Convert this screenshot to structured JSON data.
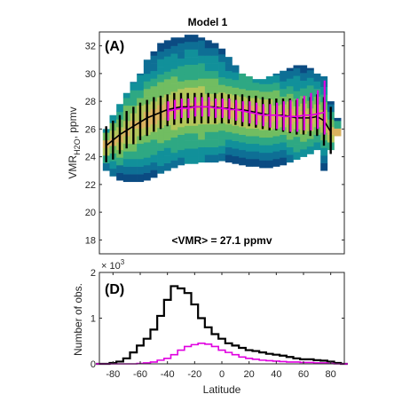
{
  "chart_data": [
    {
      "panel": "(A)",
      "type": "heatmap",
      "title": "Model 1",
      "xlim": [
        -90,
        90
      ],
      "ylim": [
        17,
        33
      ],
      "yticks": [
        18,
        20,
        22,
        24,
        26,
        28,
        30,
        32
      ],
      "ylabel_main": "VMR",
      "ylabel_sub": "H2O",
      "ylabel_rest": ", ppmv",
      "annotation": "<VMR> = 27.1 ppmv",
      "x": [
        -85,
        -80,
        -75,
        -70,
        -65,
        -60,
        -55,
        -50,
        -45,
        -40,
        -35,
        -30,
        -25,
        -20,
        -15,
        -10,
        -5,
        0,
        5,
        10,
        15,
        20,
        25,
        30,
        35,
        40,
        45,
        50,
        55,
        60,
        65,
        70,
        75,
        80,
        85
      ],
      "density_range": {
        "low": [
          23.0,
          22.6,
          22.3,
          22.2,
          22.2,
          22.2,
          22.3,
          22.5,
          22.8,
          23.0,
          23.2,
          23.4,
          23.5,
          23.5,
          23.6,
          23.6,
          23.6,
          23.7,
          23.6,
          23.5,
          23.4,
          23.3,
          23.3,
          23.2,
          23.2,
          23.3,
          23.4,
          23.6,
          23.8,
          24.0,
          24.2,
          24.5,
          23.0,
          24.5,
          25.5
        ],
        "high": [
          26.0,
          27.0,
          27.8,
          28.6,
          29.4,
          30.0,
          31.0,
          31.6,
          32.2,
          32.4,
          32.6,
          32.6,
          32.8,
          32.8,
          32.6,
          32.4,
          32.2,
          31.8,
          31.2,
          30.6,
          30.0,
          29.8,
          29.6,
          29.6,
          29.8,
          30.0,
          30.2,
          30.4,
          30.6,
          30.6,
          30.4,
          30.0,
          29.8,
          28.0,
          26.8
        ]
      },
      "series": [
        {
          "name": "",
          "color": "#000000",
          "x": [
            -85,
            -80,
            -75,
            -70,
            -65,
            -60,
            -55,
            -50,
            -45,
            -40,
            -35,
            -30,
            -25,
            -20,
            -15,
            -10,
            -5,
            0,
            5,
            10,
            15,
            20,
            25,
            30,
            35,
            40,
            45,
            50,
            55,
            60,
            65,
            70,
            75,
            80
          ],
          "median": [
            24.8,
            25.2,
            25.6,
            25.9,
            26.2,
            26.5,
            26.8,
            27.0,
            27.2,
            27.4,
            27.5,
            27.6,
            27.6,
            27.6,
            27.6,
            27.6,
            27.6,
            27.5,
            27.5,
            27.4,
            27.4,
            27.3,
            27.2,
            27.1,
            27.0,
            27.0,
            27.0,
            26.9,
            26.8,
            26.8,
            26.8,
            26.9,
            26.6,
            25.8
          ],
          "low": [
            23.6,
            23.8,
            24.2,
            24.6,
            24.9,
            25.2,
            25.5,
            25.8,
            26.0,
            26.2,
            26.3,
            26.4,
            26.4,
            26.4,
            26.4,
            26.4,
            26.4,
            26.4,
            26.4,
            26.3,
            26.2,
            26.2,
            26.1,
            26.0,
            25.9,
            25.9,
            25.8,
            25.7,
            25.6,
            25.6,
            25.5,
            25.5,
            24.8,
            24.2
          ],
          "high": [
            26.2,
            26.6,
            27.0,
            27.3,
            27.6,
            27.9,
            28.1,
            28.3,
            28.4,
            28.5,
            28.6,
            28.6,
            28.6,
            28.6,
            28.6,
            28.6,
            28.6,
            28.6,
            28.5,
            28.5,
            28.5,
            28.4,
            28.4,
            28.3,
            28.2,
            28.2,
            28.2,
            28.2,
            28.1,
            28.2,
            28.3,
            28.5,
            28.3,
            27.6
          ]
        },
        {
          "name": "",
          "color": "#e000e0",
          "x": [
            -40,
            -35,
            -30,
            -25,
            -20,
            -15,
            -10,
            -5,
            0,
            5,
            10,
            15,
            20,
            25,
            30,
            35,
            40,
            45,
            50,
            55,
            60,
            65,
            70,
            75
          ],
          "median": [
            27.3,
            27.4,
            27.5,
            27.5,
            27.6,
            27.6,
            27.6,
            27.5,
            27.5,
            27.4,
            27.4,
            27.3,
            27.2,
            27.1,
            27.0,
            27.0,
            27.0,
            26.9,
            26.9,
            26.9,
            27.0,
            27.0,
            27.1,
            27.2
          ],
          "low": [
            26.6,
            26.7,
            26.8,
            26.8,
            26.9,
            26.9,
            26.9,
            26.8,
            26.8,
            26.7,
            26.6,
            26.5,
            26.4,
            26.3,
            26.2,
            26.1,
            26.0,
            25.9,
            25.8,
            25.8,
            25.9,
            25.9,
            26.0,
            25.6
          ],
          "high": [
            28.0,
            28.1,
            28.2,
            28.2,
            28.3,
            28.3,
            28.3,
            28.2,
            28.2,
            28.2,
            28.1,
            28.0,
            28.0,
            27.9,
            27.8,
            27.8,
            27.9,
            28.0,
            28.1,
            28.2,
            28.4,
            28.6,
            28.8,
            29.5
          ]
        }
      ]
    },
    {
      "panel": "(D)",
      "type": "line",
      "xlim": [
        -90,
        90
      ],
      "ylim": [
        0,
        2
      ],
      "xticks": [
        -80,
        -60,
        -40,
        -20,
        0,
        20,
        40,
        60,
        80
      ],
      "yticks": [
        0,
        1,
        2
      ],
      "xlabel": "Latitude",
      "ylabel": "Number of obs.",
      "exponent_label": "× 10",
      "exponent_power": "3",
      "series": [
        {
          "name": "",
          "color": "#000000",
          "x": [
            -90,
            -85,
            -80,
            -75,
            -70,
            -65,
            -60,
            -55,
            -50,
            -45,
            -40,
            -35,
            -30,
            -25,
            -20,
            -15,
            -10,
            -5,
            0,
            5,
            10,
            15,
            20,
            25,
            30,
            35,
            40,
            45,
            50,
            55,
            60,
            65,
            70,
            75,
            80,
            85,
            90
          ],
          "values": [
            0.0,
            0.0,
            0.02,
            0.05,
            0.12,
            0.25,
            0.4,
            0.55,
            0.75,
            1.05,
            1.4,
            1.7,
            1.65,
            1.55,
            1.3,
            1.0,
            0.8,
            0.65,
            0.55,
            0.45,
            0.4,
            0.35,
            0.3,
            0.28,
            0.25,
            0.22,
            0.2,
            0.18,
            0.15,
            0.12,
            0.1,
            0.1,
            0.08,
            0.07,
            0.05,
            0.02,
            0.0
          ]
        },
        {
          "name": "",
          "color": "#e000e0",
          "x": [
            -90,
            -85,
            -80,
            -75,
            -70,
            -65,
            -60,
            -55,
            -50,
            -45,
            -40,
            -35,
            -30,
            -25,
            -20,
            -15,
            -10,
            -5,
            0,
            5,
            10,
            15,
            20,
            25,
            30,
            35,
            40,
            45,
            50,
            55,
            60,
            65,
            70,
            75,
            80,
            85,
            90
          ],
          "values": [
            0.0,
            0.0,
            0.0,
            0.0,
            0.0,
            0.0,
            0.01,
            0.02,
            0.04,
            0.08,
            0.12,
            0.2,
            0.3,
            0.38,
            0.42,
            0.45,
            0.43,
            0.38,
            0.3,
            0.25,
            0.2,
            0.15,
            0.12,
            0.1,
            0.08,
            0.07,
            0.06,
            0.05,
            0.04,
            0.04,
            0.03,
            0.03,
            0.02,
            0.02,
            0.01,
            0.0,
            0.0
          ]
        }
      ]
    }
  ]
}
